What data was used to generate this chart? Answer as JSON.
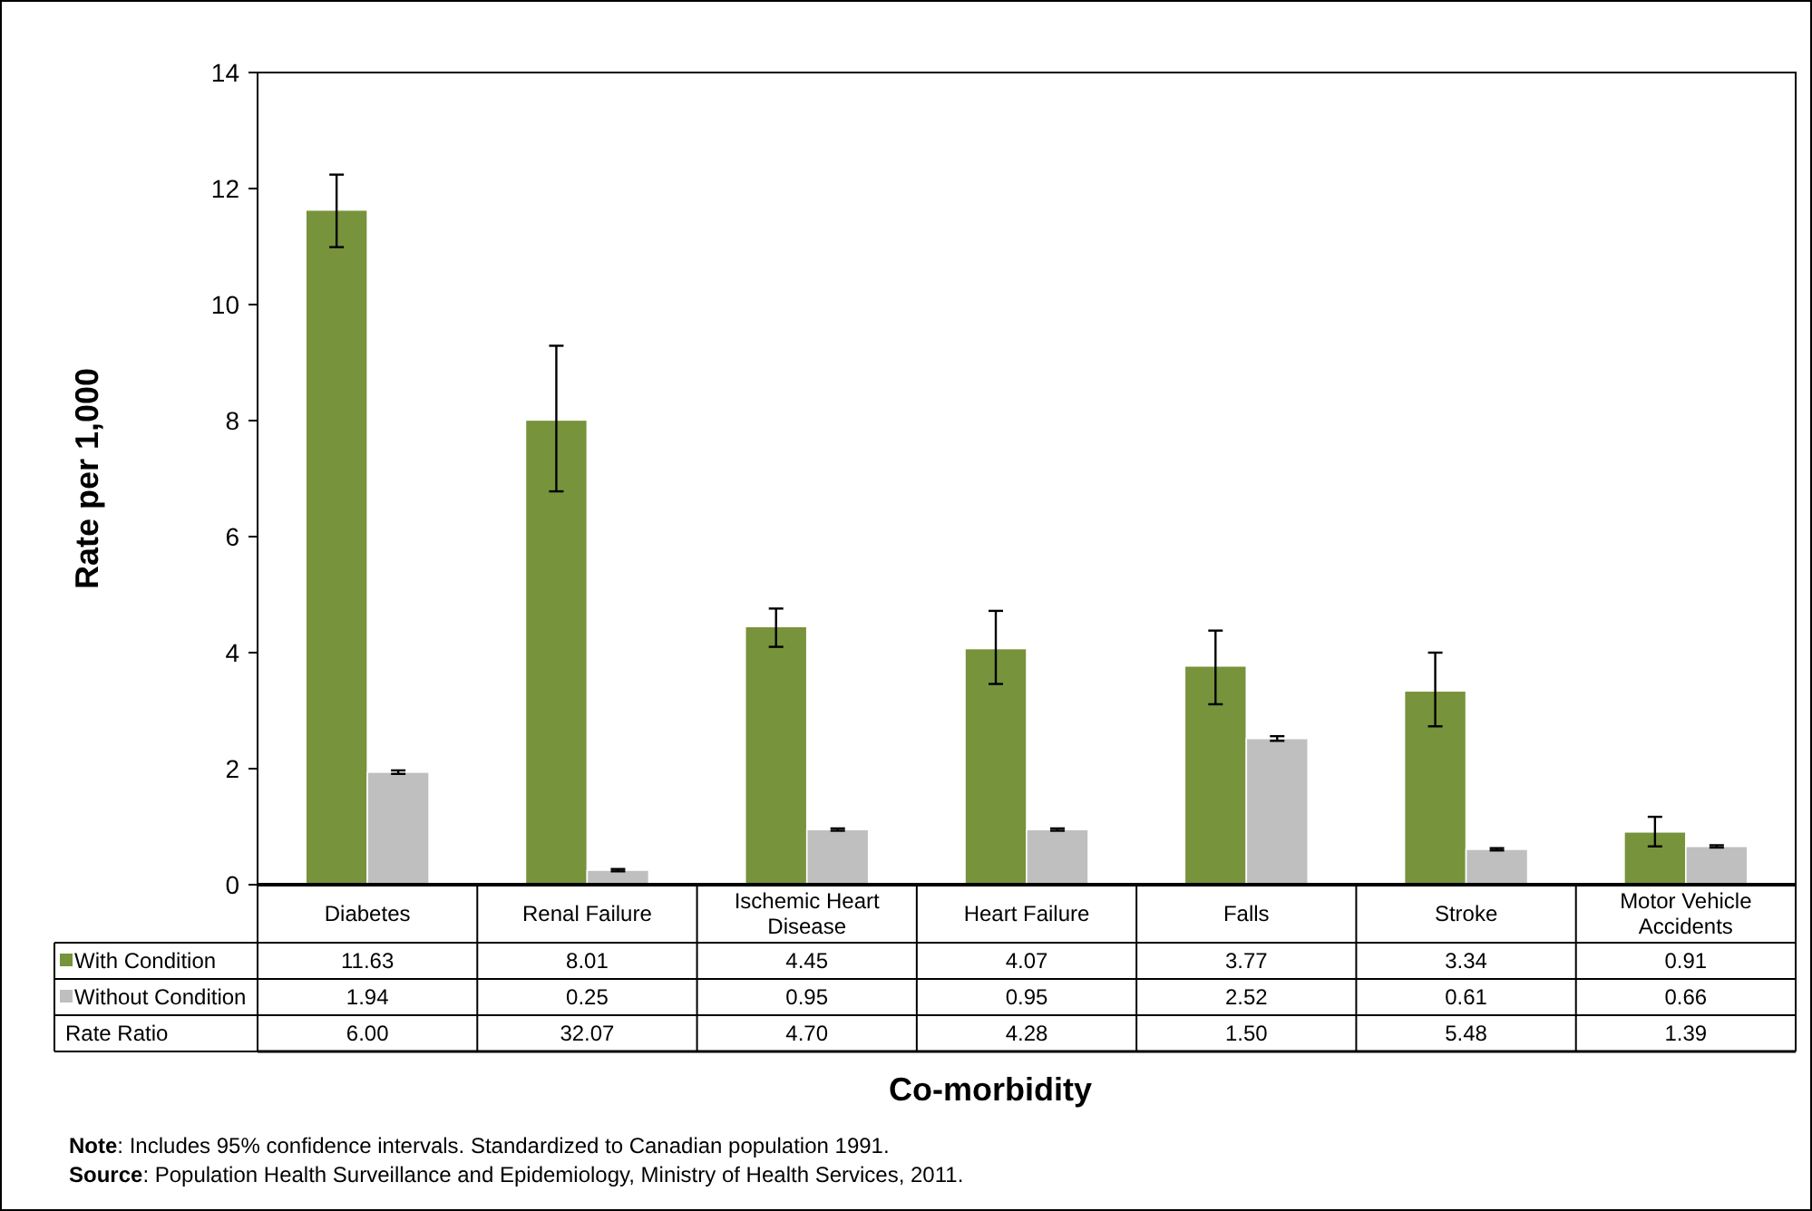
{
  "chart_data": {
    "type": "bar",
    "xlabel": "Co-morbidity",
    "ylabel": "Rate per 1,000",
    "categories": [
      "Diabetes",
      "Renal Failure",
      "Ischemic Heart Disease",
      "Heart Failure",
      "Falls",
      "Stroke",
      "Motor Vehicle Accidents"
    ],
    "series": [
      {
        "name": "With Condition",
        "color": "#77933c",
        "values": [
          11.63,
          8.01,
          4.45,
          4.07,
          3.77,
          3.34,
          0.91
        ],
        "errors": [
          [
            10.99,
            12.24
          ],
          [
            6.78,
            9.29
          ],
          [
            4.1,
            4.76
          ],
          [
            3.46,
            4.72
          ],
          [
            3.11,
            4.38
          ],
          [
            2.73,
            4.0
          ],
          [
            0.66,
            1.17
          ]
        ]
      },
      {
        "name": "Without Condition",
        "color": "#bfbfbf",
        "values": [
          1.94,
          0.25,
          0.95,
          0.95,
          2.52,
          0.61,
          0.66
        ],
        "errors": [
          0.03,
          0.02,
          0.02,
          0.02,
          0.04,
          0.02,
          0.02
        ]
      }
    ],
    "ylim": [
      0,
      14
    ],
    "yticks": [
      0,
      2,
      4,
      6,
      8,
      10,
      12,
      14
    ],
    "grid": false,
    "legend": "bottom",
    "data_labels": true,
    "annotations": [
      "Rate Ratio",
      "6.00",
      "32.07",
      "4.70",
      "4.28",
      "1.50",
      "5.48",
      "1.39",
      "Note: Includes 95% confidence intervals. Standardized to Canadian population 1991.",
      "Source: Population Health Surveillance and Epidemiology, Ministry of Health Services, 2011."
    ]
  }
}
